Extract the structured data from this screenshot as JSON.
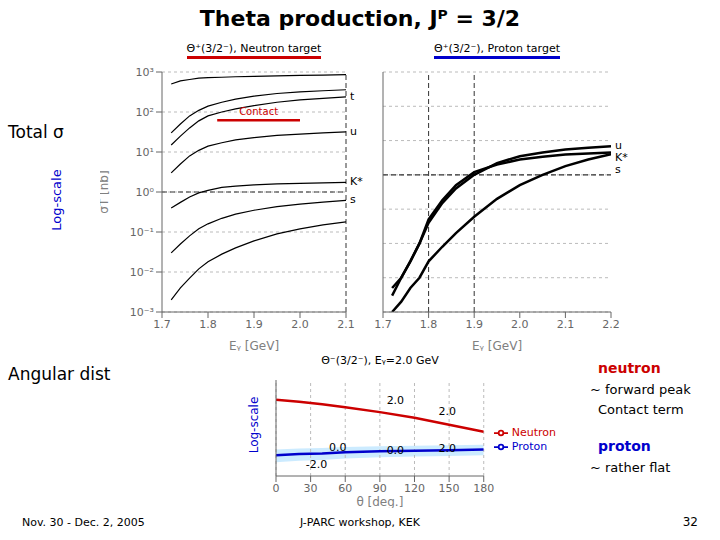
{
  "title": "Theta production, Jᴾ = 3/2",
  "annotations": [
    {
      "text": "Total σ"
    },
    {
      "text": "Log-scale",
      "color": "#0000cc"
    },
    {
      "text": "Angular dist"
    },
    {
      "text": "Log-scale",
      "color": "#0000cc"
    },
    {
      "text": "neutron",
      "color": "#cc0000"
    },
    {
      "text": "~ forward peak"
    },
    {
      "text": "Contact term"
    },
    {
      "text": "proton",
      "color": "#0000cc"
    },
    {
      "text": "~ rather flat"
    }
  ],
  "footer": [
    "Nov. 30 - Dec. 2, 2005",
    "J-PARC workshop, KEK",
    "32"
  ],
  "chart_data": [
    {
      "type": "line",
      "title": "Θ⁺(3/2⁻), Neutron target",
      "color": "#cc0000",
      "x_label": "Eᵧ [GeV]",
      "y_label": "σT [nb]",
      "log": "y",
      "grid": "y",
      "xlim": [
        1.7,
        2.1
      ],
      "xticks": [
        1.7,
        1.8,
        1.9,
        {
          "value": 2,
          "label": "2.0"
        },
        2.1
      ],
      "ylim": [
        0.001,
        1000
      ],
      "yticks": [
        {
          "value": 0.001,
          "label": "10⁻³"
        },
        {
          "value": 0.01,
          "label": "10⁻²"
        },
        {
          "value": 0.1,
          "label": "10⁻¹"
        },
        {
          "value": 1,
          "label": "10⁰"
        },
        {
          "value": 10,
          "label": "10¹"
        },
        {
          "value": 100,
          "label": "10²"
        },
        {
          "value": 1000,
          "label": "10³"
        }
      ],
      "reference_lines": {
        "x": [
          2.1
        ],
        "y": [
          1
        ]
      },
      "x": [
        1.72,
        1.74,
        1.76,
        1.78,
        1.8,
        1.83,
        1.86,
        1.9,
        1.95,
        2.0,
        2.05,
        2.1
      ],
      "series": [
        {
          "color": "#000000",
          "values": [
            500,
            600,
            650,
            700,
            720,
            740,
            760,
            780,
            800,
            820,
            840,
            860
          ]
        },
        {
          "color": "#000000",
          "values": [
            30,
            50,
            80,
            110,
            140,
            175,
            210,
            250,
            290,
            320,
            340,
            360
          ]
        },
        {
          "name": "t",
          "color": "#000000",
          "values": [
            15,
            25,
            40,
            60,
            80,
            100,
            120,
            145,
            175,
            200,
            220,
            240
          ]
        },
        {
          "name": "u",
          "color": "#000000",
          "values": [
            3,
            5,
            8,
            11,
            14,
            17,
            20,
            23,
            26,
            28,
            30,
            32
          ]
        },
        {
          "name": "K*",
          "color": "#000000",
          "values": [
            0.4,
            0.55,
            0.75,
            0.95,
            1.1,
            1.3,
            1.4,
            1.5,
            1.6,
            1.65,
            1.7,
            1.75
          ]
        },
        {
          "name": "s",
          "color": "#000000",
          "values": [
            0.03,
            0.05,
            0.08,
            0.12,
            0.16,
            0.22,
            0.28,
            0.35,
            0.43,
            0.5,
            0.56,
            0.62
          ]
        },
        {
          "color": "#000000",
          "values": [
            0.002,
            0.004,
            0.007,
            0.012,
            0.018,
            0.028,
            0.04,
            0.06,
            0.09,
            0.12,
            0.15,
            0.18
          ]
        }
      ],
      "annotations": [
        {
          "text": "Contact",
          "color": "#cc0000",
          "x": [
            1.82,
            2.0
          ],
          "y": 62
        }
      ]
    },
    {
      "type": "line",
      "title": "Θ⁺(3/2⁻), Proton target",
      "color": "#0000cc",
      "x_label": "Eᵧ [GeV]",
      "log": "y",
      "grid": "y",
      "tick_labels": "x",
      "xlim": [
        1.7,
        2.2
      ],
      "xticks": [
        1.7,
        1.8,
        1.9,
        {
          "value": 2,
          "label": "2.0"
        },
        2.1,
        2.2
      ],
      "ylim": [
        0.0001,
        1000
      ],
      "yticks": [
        0.0001,
        0.001,
        0.01,
        0.1,
        1,
        10,
        100,
        1000
      ],
      "reference_lines": {
        "x": [
          1.8,
          1.9
        ],
        "y": [
          1
        ]
      },
      "x": [
        1.72,
        1.74,
        1.76,
        1.78,
        1.8,
        1.83,
        1.86,
        1.9,
        1.95,
        2.0,
        2.05,
        2.1,
        2.15,
        2.2
      ],
      "series": [
        {
          "name": "u",
          "color": "#000000",
          "values": [
            0.0005,
            0.001,
            0.003,
            0.01,
            0.04,
            0.15,
            0.4,
            1.0,
            2.2,
            3.5,
            4.5,
            5.5,
            6.2,
            6.8
          ]
        },
        {
          "name": "K*",
          "color": "#000000",
          "values": [
            0.0003,
            0.001,
            0.003,
            0.01,
            0.05,
            0.18,
            0.5,
            1.2,
            2.0,
            2.8,
            3.4,
            3.9,
            4.2,
            4.5
          ]
        },
        {
          "name": "s",
          "color": "#000000",
          "values": [
            0.0001,
            0.0002,
            0.0005,
            0.001,
            0.003,
            0.008,
            0.02,
            0.06,
            0.2,
            0.5,
            1.0,
            1.8,
            2.8,
            4.0
          ]
        }
      ]
    },
    {
      "type": "line",
      "title": "Θ⁻(3/2⁻), Eᵧ=2.0 GeV",
      "x_label": "θ [deg.]",
      "log": "y",
      "grid": "x",
      "tick_labels": "x",
      "legend": "right",
      "xlim": [
        0,
        180
      ],
      "xticks": [
        0,
        30,
        60,
        90,
        120,
        150,
        180
      ],
      "ylim": [
        0.3,
        5.0
      ],
      "x": [
        0,
        20,
        40,
        60,
        90,
        120,
        150,
        180
      ],
      "series": [
        {
          "name": "Neutron",
          "color": "#cc0000",
          "values": [
            2.8,
            2.65,
            2.45,
            2.25,
            1.95,
            1.65,
            1.35,
            1.1
          ]
        },
        {
          "name": "Proton",
          "color": "#0000cc",
          "values": [
            0.55,
            0.57,
            0.58,
            0.6,
            0.62,
            0.63,
            0.64,
            0.65
          ],
          "band": {
            "color": "#aaddff",
            "lo": [
              0.45,
              0.47,
              0.48,
              0.5,
              0.52,
              0.53,
              0.54,
              0.55
            ],
            "hi": [
              0.65,
              0.67,
              0.68,
              0.7,
              0.72,
              0.73,
              0.74,
              0.75
            ]
          }
        }
      ],
      "annotations": [
        {
          "text": "2.0",
          "x": 95,
          "y": 2.5
        },
        {
          "text": "2.0",
          "x": 140,
          "y": 1.8
        },
        {
          "text": "0.0",
          "x": 45,
          "y": 0.62
        },
        {
          "text": "0.0",
          "x": 95,
          "y": 0.58
        },
        {
          "text": "2.0",
          "x": 140,
          "y": 0.6
        },
        {
          "text": "-2.0",
          "x": 25,
          "y": 0.38
        }
      ]
    }
  ]
}
